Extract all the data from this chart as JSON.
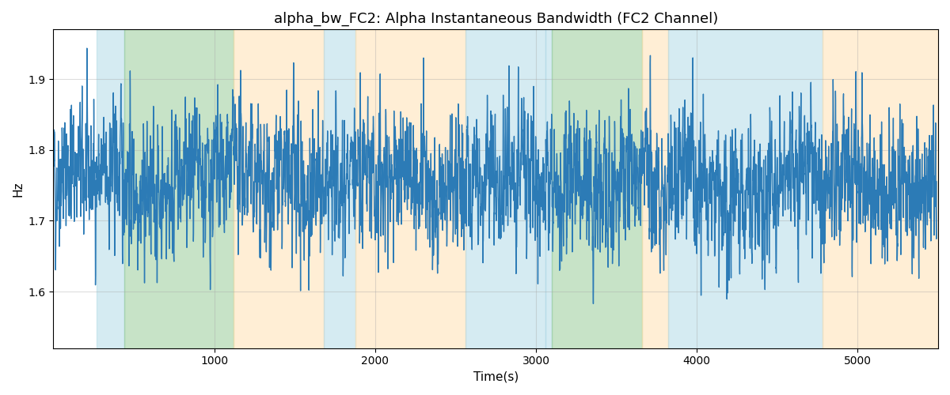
{
  "title": "alpha_bw_FC2: Alpha Instantaneous Bandwidth (FC2 Channel)",
  "xlabel": "Time(s)",
  "ylabel": "Hz",
  "xlim": [
    0,
    5500
  ],
  "ylim": [
    1.52,
    1.97
  ],
  "yticks": [
    1.6,
    1.7,
    1.8,
    1.9
  ],
  "xticks": [
    1000,
    2000,
    3000,
    4000,
    5000
  ],
  "background_bands": [
    {
      "xmin": 270,
      "xmax": 440,
      "color": "#add8e6",
      "alpha": 0.5
    },
    {
      "xmin": 440,
      "xmax": 1120,
      "color": "#90c990",
      "alpha": 0.5
    },
    {
      "xmin": 1120,
      "xmax": 1680,
      "color": "#ffdead",
      "alpha": 0.5
    },
    {
      "xmin": 1680,
      "xmax": 1880,
      "color": "#add8e6",
      "alpha": 0.5
    },
    {
      "xmin": 1880,
      "xmax": 2560,
      "color": "#ffdead",
      "alpha": 0.5
    },
    {
      "xmin": 2560,
      "xmax": 3060,
      "color": "#add8e6",
      "alpha": 0.5
    },
    {
      "xmin": 3060,
      "xmax": 3100,
      "color": "#add8e6",
      "alpha": 0.5
    },
    {
      "xmin": 3100,
      "xmax": 3660,
      "color": "#90c990",
      "alpha": 0.5
    },
    {
      "xmin": 3660,
      "xmax": 3820,
      "color": "#ffdead",
      "alpha": 0.5
    },
    {
      "xmin": 3820,
      "xmax": 4780,
      "color": "#add8e6",
      "alpha": 0.5
    },
    {
      "xmin": 4780,
      "xmax": 5500,
      "color": "#ffdead",
      "alpha": 0.5
    }
  ],
  "line_color": "#2c7bb6",
  "line_width": 1.0,
  "grid_color": "#aaaaaa",
  "grid_alpha": 0.4,
  "seed": 42,
  "n_points": 5500,
  "signal_mean": 1.755,
  "signal_std": 0.068,
  "figsize": [
    12.0,
    5.0
  ],
  "dpi": 100
}
